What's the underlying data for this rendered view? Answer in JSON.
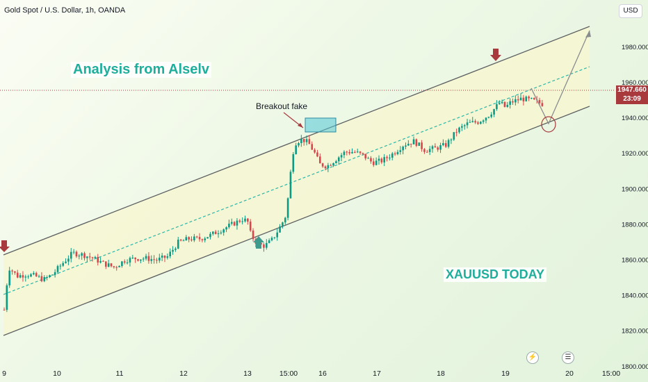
{
  "header": {
    "symbol": "Gold Spot / U.S. Dollar, 1h, OANDA",
    "currency": "USD"
  },
  "annotations": {
    "title": "Analysis from Alselv",
    "breakout": "Breakout fake",
    "today": "XAUUSD TODAY"
  },
  "price_label": {
    "price": "1947.660",
    "countdown": "23:09"
  },
  "colors": {
    "channel_fill": "#f7f5cf",
    "channel_line": "#5d6061",
    "mid_line": "#29b6a8",
    "up": "#0b9a84",
    "down": "#d9454b",
    "arrow_down": "#a83a3e",
    "arrow_up": "#3e9a8c",
    "highlight": "#52c6d8"
  },
  "icons": [
    "lightning-icon",
    "flag-icon"
  ],
  "chart_data": {
    "type": "candlestick",
    "title": "Gold Spot / U.S. Dollar, 1h, OANDA",
    "ylabel": "USD",
    "ylim": [
      1796,
      1998
    ],
    "y_ticks": [
      1800,
      1820,
      1840,
      1860,
      1880,
      1900,
      1920,
      1940,
      1960,
      1980
    ],
    "y_tick_labels": [
      "1800.000",
      "1820.000",
      "1840.000",
      "1860.000",
      "1880.000",
      "1900.000",
      "1920.000",
      "1940.000",
      "1960.000",
      "1980.000"
    ],
    "x_tick_labels": [
      "9",
      "10",
      "11",
      "12",
      "13",
      "15:00",
      "16",
      "17",
      "18",
      "19",
      "20",
      "15:00"
    ],
    "close_path": [
      [
        "9 00:00",
        1832
      ],
      [
        "9 02:00",
        1856
      ],
      [
        "9 06:00",
        1851
      ],
      [
        "9 10:00",
        1852
      ],
      [
        "9 14:00",
        1851
      ],
      [
        "9 18:00",
        1849
      ],
      [
        "9 22:00",
        1852
      ],
      [
        "10 02:00",
        1858
      ],
      [
        "10 06:00",
        1864
      ],
      [
        "10 10:00",
        1863
      ],
      [
        "10 14:00",
        1861
      ],
      [
        "10 18:00",
        1858
      ],
      [
        "10 22:00",
        1856
      ],
      [
        "11 02:00",
        1860
      ],
      [
        "11 06:00",
        1861
      ],
      [
        "11 10:00",
        1861
      ],
      [
        "11 14:00",
        1860
      ],
      [
        "11 18:00",
        1862
      ],
      [
        "11 22:00",
        1870
      ],
      [
        "12 02:00",
        1872
      ],
      [
        "12 06:00",
        1872
      ],
      [
        "12 10:00",
        1874
      ],
      [
        "12 14:00",
        1877
      ],
      [
        "12 18:00",
        1880
      ],
      [
        "12 22:00",
        1883
      ],
      [
        "13 00:00",
        1882
      ],
      [
        "13 02:00",
        1874
      ],
      [
        "13 06:00",
        1869
      ],
      [
        "13 10:00",
        1868
      ],
      [
        "13 14:00",
        1871
      ],
      [
        "13 18:00",
        1877
      ],
      [
        "13 22:00",
        1884
      ],
      [
        "15 00:00",
        1897
      ],
      [
        "15 02:00",
        1914
      ],
      [
        "15 04:00",
        1925
      ],
      [
        "15 06:00",
        1927
      ],
      [
        "15 10:00",
        1928
      ],
      [
        "15 14:00",
        1926
      ],
      [
        "15 18:00",
        1921
      ],
      [
        "15 22:00",
        1914
      ],
      [
        "16 02:00",
        1913
      ],
      [
        "16 06:00",
        1917
      ],
      [
        "16 10:00",
        1921
      ],
      [
        "16 14:00",
        1921
      ],
      [
        "16 18:00",
        1919
      ],
      [
        "16 22:00",
        1915
      ],
      [
        "17 02:00",
        1916
      ],
      [
        "17 06:00",
        1920
      ],
      [
        "17 10:00",
        1925
      ],
      [
        "17 14:00",
        1927
      ],
      [
        "17 18:00",
        1922
      ],
      [
        "17 22:00",
        1923
      ],
      [
        "18 02:00",
        1925
      ],
      [
        "18 06:00",
        1933
      ],
      [
        "18 10:00",
        1937
      ],
      [
        "18 14:00",
        1938
      ],
      [
        "18 18:00",
        1942
      ],
      [
        "18 22:00",
        1949
      ],
      [
        "19 00:00",
        1946
      ],
      [
        "19 02:00",
        1949
      ],
      [
        "19 06:00",
        1951
      ],
      [
        "19 10:00",
        1950
      ],
      [
        "19 14:00",
        1948
      ]
    ],
    "channel": {
      "upper": [
        [
          "9 00:00",
          1859
        ],
        [
          "19 22:00",
          1983
        ]
      ],
      "lower": [
        [
          "9 00:00",
          1812
        ],
        [
          "19 22:00",
          1938
        ]
      ],
      "mid": [
        [
          "9 00:00",
          1834
        ],
        [
          "19 22:00",
          1960
        ]
      ]
    },
    "projection": [
      [
        "19 14:00",
        1948
      ],
      [
        "19 18:00",
        1932
      ],
      [
        "19 22:00",
        1982
      ]
    ],
    "current_price": 1947.66,
    "grid": false
  }
}
